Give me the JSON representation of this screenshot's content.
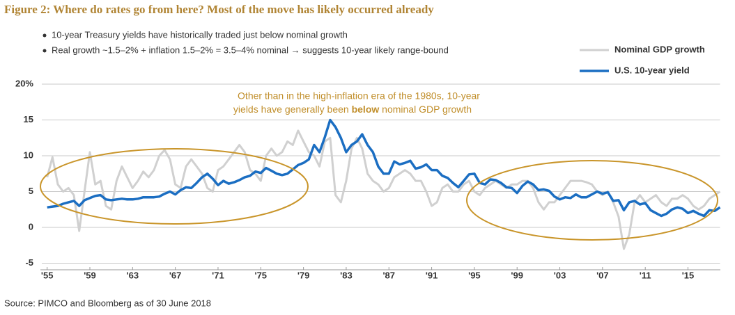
{
  "chart_data": {
    "type": "line",
    "title": "Figure 2: Where do rates go from here? Most of the move has likely occurred already",
    "bullets": [
      "10-year Treasury yields have historically traded just below nominal growth",
      "Real growth ~1.5–2% + inflation 1.5–2% = 3.5–4% nominal → suggests 10-year likely range-bound"
    ],
    "annotation": [
      "Other than in the high-inflation era of the 1980s, 10-year",
      "yields have generally been ",
      "below",
      " nominal GDP growth"
    ],
    "source": "Source: PIMCO and Bloomberg as of 30 June 2018",
    "xlim": [
      1954.5,
      2018
    ],
    "xticks": [
      {
        "value": 1955,
        "label": "'55"
      },
      {
        "value": 1959,
        "label": "'59"
      },
      {
        "value": 1963,
        "label": "'63"
      },
      {
        "value": 1967,
        "label": "'67"
      },
      {
        "value": 1971,
        "label": "'71"
      },
      {
        "value": 1975,
        "label": "'75"
      },
      {
        "value": 1979,
        "label": "'79"
      },
      {
        "value": 1983,
        "label": "'83"
      },
      {
        "value": 1987,
        "label": "'87"
      },
      {
        "value": 1991,
        "label": "'91"
      },
      {
        "value": 1995,
        "label": "'95"
      },
      {
        "value": 1999,
        "label": "'99"
      },
      {
        "value": 2003,
        "label": "'03"
      },
      {
        "value": 2007,
        "label": "'07"
      },
      {
        "value": 2011,
        "label": "'11"
      },
      {
        "value": 2015,
        "label": "'15"
      }
    ],
    "ylim": [
      -5,
      20
    ],
    "yticks": [
      -5,
      0,
      5,
      10,
      15,
      {
        "value": 20,
        "label": "20%"
      }
    ],
    "grid": true,
    "x": [
      1955,
      1955.5,
      1956,
      1956.5,
      1957,
      1957.5,
      1958,
      1958.5,
      1959,
      1959.5,
      1960,
      1960.5,
      1961,
      1961.5,
      1962,
      1962.5,
      1963,
      1963.5,
      1964,
      1964.5,
      1965,
      1965.5,
      1966,
      1966.5,
      1967,
      1967.5,
      1968,
      1968.5,
      1969,
      1969.5,
      1970,
      1970.5,
      1971,
      1971.5,
      1972,
      1972.5,
      1973,
      1973.5,
      1974,
      1974.5,
      1975,
      1975.5,
      1976,
      1976.5,
      1977,
      1977.5,
      1978,
      1978.5,
      1979,
      1979.5,
      1980,
      1980.5,
      1981,
      1981.5,
      1982,
      1982.5,
      1983,
      1983.5,
      1984,
      1984.5,
      1985,
      1985.5,
      1986,
      1986.5,
      1987,
      1987.5,
      1988,
      1988.5,
      1989,
      1989.5,
      1990,
      1990.5,
      1991,
      1991.5,
      1992,
      1992.5,
      1993,
      1993.5,
      1994,
      1994.5,
      1995,
      1995.5,
      1996,
      1996.5,
      1997,
      1997.5,
      1998,
      1998.5,
      1999,
      1999.5,
      2000,
      2000.5,
      2001,
      2001.5,
      2002,
      2002.5,
      2003,
      2003.5,
      2004,
      2004.5,
      2005,
      2005.5,
      2006,
      2006.5,
      2007,
      2007.5,
      2008,
      2008.5,
      2009,
      2009.5,
      2010,
      2010.5,
      2011,
      2011.5,
      2012,
      2012.5,
      2013,
      2013.5,
      2014,
      2014.5,
      2015,
      2015.5,
      2016,
      2016.5,
      2017,
      2017.5,
      2018
    ],
    "series": [
      {
        "name": "Nominal GDP growth",
        "color": "#d0d0d0",
        "width": 3,
        "values": [
          7.0,
          9.8,
          6.0,
          5.0,
          5.5,
          4.5,
          -0.5,
          5.0,
          10.5,
          6.0,
          6.5,
          3.0,
          2.5,
          6.5,
          8.5,
          7.0,
          5.5,
          6.5,
          7.8,
          7.0,
          8.0,
          10.0,
          10.8,
          9.5,
          6.0,
          5.5,
          8.5,
          9.5,
          8.5,
          7.5,
          5.5,
          5.0,
          8.0,
          8.5,
          9.5,
          10.5,
          11.5,
          10.5,
          8.0,
          7.5,
          6.5,
          10.0,
          11.0,
          10.0,
          10.5,
          12.0,
          11.5,
          13.5,
          12.0,
          10.5,
          10.0,
          8.5,
          12.0,
          12.5,
          4.5,
          3.5,
          6.5,
          11.0,
          12.5,
          11.0,
          7.5,
          6.5,
          6.0,
          5.0,
          5.5,
          7.0,
          7.5,
          8.0,
          7.5,
          6.5,
          6.5,
          5.0,
          3.0,
          3.5,
          5.5,
          6.0,
          5.0,
          5.0,
          6.0,
          6.5,
          5.0,
          4.5,
          5.5,
          6.0,
          6.5,
          6.0,
          5.5,
          6.0,
          6.0,
          6.5,
          6.5,
          5.5,
          3.5,
          2.5,
          3.5,
          3.5,
          4.5,
          5.5,
          6.5,
          6.5,
          6.5,
          6.3,
          6.0,
          5.0,
          4.5,
          5.0,
          3.5,
          1.5,
          -3.0,
          -1.0,
          3.5,
          4.5,
          3.5,
          4.0,
          4.5,
          3.5,
          3.0,
          4.0,
          4.0,
          4.5,
          4.0,
          3.0,
          2.5,
          3.0,
          4.0,
          4.5,
          5.0
        ]
      },
      {
        "name": "U.S. 10-year yield",
        "color": "#1b6ec2",
        "width": 3.5,
        "values": [
          2.8,
          2.9,
          3.0,
          3.3,
          3.5,
          3.7,
          3.0,
          3.8,
          4.1,
          4.4,
          4.5,
          3.9,
          3.8,
          3.9,
          4.0,
          3.9,
          3.9,
          4.0,
          4.2,
          4.2,
          4.2,
          4.3,
          4.7,
          5.0,
          4.6,
          5.2,
          5.6,
          5.5,
          6.2,
          7.0,
          7.5,
          6.8,
          5.9,
          6.5,
          6.1,
          6.3,
          6.6,
          7.0,
          7.2,
          7.8,
          7.6,
          8.3,
          7.9,
          7.5,
          7.3,
          7.5,
          8.1,
          8.7,
          9.0,
          9.5,
          11.5,
          10.5,
          12.6,
          15.0,
          14.0,
          12.5,
          10.5,
          11.5,
          12.0,
          13.0,
          11.5,
          10.5,
          8.5,
          7.5,
          7.5,
          9.2,
          8.8,
          9.0,
          9.3,
          8.2,
          8.4,
          8.8,
          8.0,
          8.0,
          7.2,
          6.9,
          6.2,
          5.6,
          6.5,
          7.4,
          7.5,
          6.2,
          6.0,
          6.7,
          6.6,
          6.2,
          5.6,
          5.5,
          4.8,
          5.8,
          6.4,
          6.0,
          5.2,
          5.3,
          5.1,
          4.3,
          3.9,
          4.2,
          4.1,
          4.6,
          4.2,
          4.2,
          4.6,
          5.0,
          4.7,
          4.9,
          3.7,
          3.8,
          2.4,
          3.5,
          3.7,
          3.2,
          3.4,
          2.4,
          2.0,
          1.6,
          1.9,
          2.5,
          2.8,
          2.6,
          2.0,
          2.3,
          1.9,
          1.6,
          2.4,
          2.3,
          2.8
        ]
      }
    ]
  }
}
